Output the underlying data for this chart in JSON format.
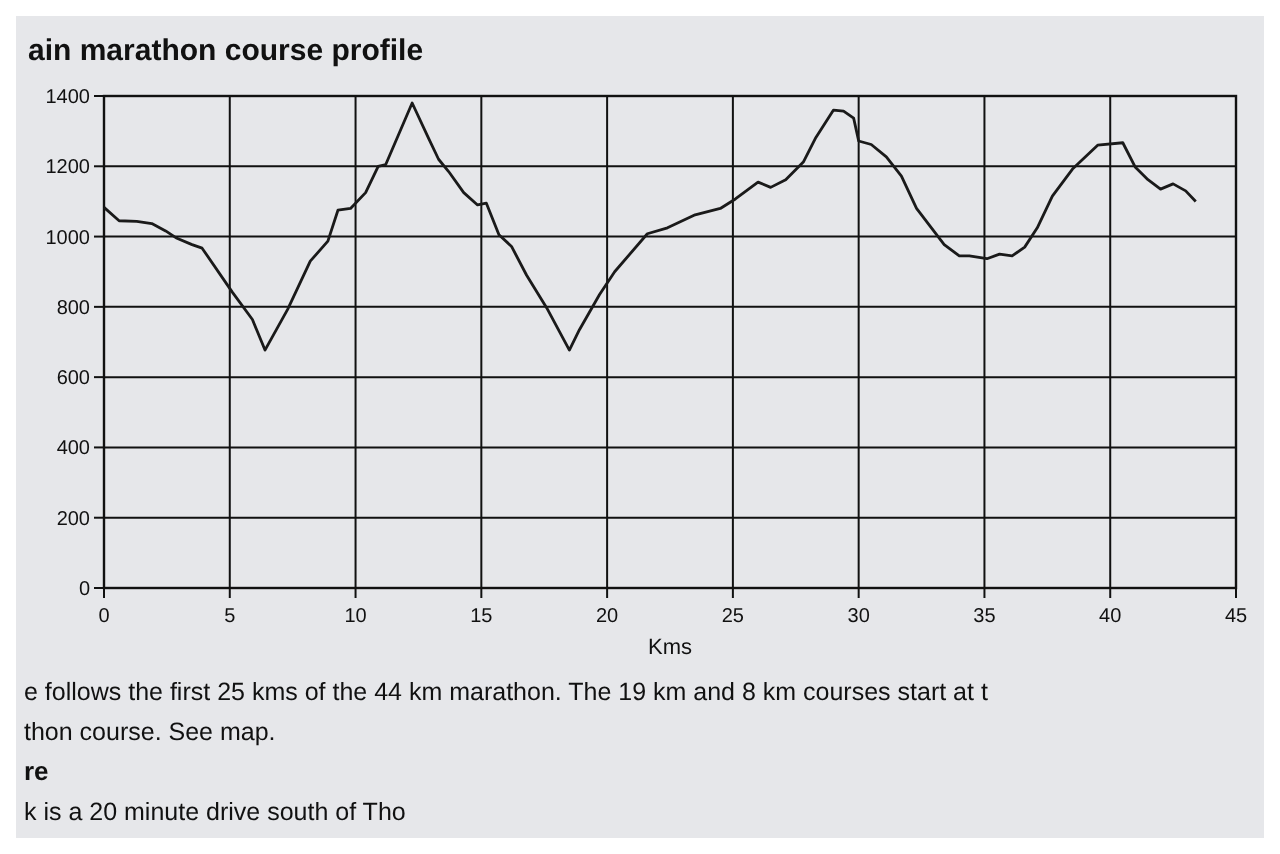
{
  "chart_data": {
    "type": "line",
    "title": "ain marathon course profile",
    "xlabel": "Kms",
    "x": [
      0,
      0.6,
      1.3,
      1.9,
      2.45,
      2.9,
      3.5,
      3.9,
      5.1,
      5.9,
      6.4,
      7.3,
      8.2,
      8.9,
      9.3,
      9.8,
      10.4,
      10.9,
      11.2,
      12.25,
      12.9,
      13.3,
      13.7,
      14.3,
      14.85,
      15.2,
      15.7,
      16.2,
      16.8,
      17.6,
      18.5,
      18.9,
      19.7,
      20.3,
      21.6,
      22.4,
      23.5,
      24.5,
      25.1,
      26.0,
      26.5,
      27.1,
      27.8,
      28.3,
      29.0,
      29.4,
      29.8,
      30.0,
      30.5,
      31.1,
      31.7,
      32.3,
      33.4,
      34.0,
      34.4,
      35.1,
      35.6,
      36.1,
      36.6,
      37.1,
      37.7,
      38.5,
      39.5,
      40.5,
      41.0,
      41.5,
      42.0,
      42.5,
      43.0,
      43.4
    ],
    "series": [
      {
        "color": "#1a1a1a",
        "values": [
          1083,
          1045,
          1043,
          1037,
          1016,
          995,
          977,
          967,
          842,
          764,
          677,
          793,
          930,
          987,
          1075,
          1080,
          1125,
          1200,
          1205,
          1380,
          1280,
          1220,
          1185,
          1125,
          1090,
          1095,
          1005,
          972,
          890,
          797,
          677,
          735,
          835,
          900,
          1008,
          1025,
          1062,
          1080,
          1107,
          1155,
          1140,
          1162,
          1212,
          1282,
          1360,
          1357,
          1337,
          1272,
          1262,
          1227,
          1172,
          1080,
          977,
          945,
          945,
          937,
          950,
          945,
          970,
          1025,
          1115,
          1192,
          1260,
          1267,
          1197,
          1162,
          1135,
          1150,
          1130,
          1100
        ]
      }
    ],
    "xlim": [
      0,
      45
    ],
    "xticks": [
      0,
      5,
      10,
      15,
      20,
      25,
      30,
      35,
      40,
      45
    ],
    "ylim": [
      0,
      1400
    ],
    "yticks": [
      0,
      200,
      400,
      600,
      800,
      1000,
      1200,
      1400
    ],
    "grid": true,
    "marker": "none",
    "line_style": "solid",
    "annotations": [
      "e follows the first 25 kms of the 44 km marathon. The 19 km and 8 km courses start at t",
      "thon course. See map.",
      "re",
      "k is a 20 minute drive south of Tho"
    ]
  }
}
